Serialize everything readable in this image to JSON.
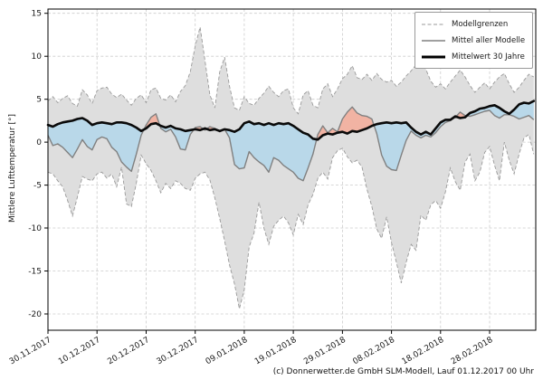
{
  "footer": {
    "copyright": "(c) Donnerwetter.de GmbH SLM-Modell, Lauf 01.12.2017 00 Uhr"
  },
  "chart_data": {
    "type": "line",
    "title": "",
    "xlabel": "",
    "ylabel": "Mittlere Lufttemperatur [°]",
    "ylim": [
      -21.9,
      15.5
    ],
    "yticks": [
      15,
      10,
      5,
      0,
      -5,
      -10,
      -15,
      -20
    ],
    "x_unit": "days_since_2017-11-30",
    "x_range": [
      0,
      99.4
    ],
    "grid": {
      "visible": true,
      "style": "dashed"
    },
    "xticks": [
      {
        "day": 0,
        "label": "30.11.2017"
      },
      {
        "day": 10,
        "label": "10.12.2017"
      },
      {
        "day": 20,
        "label": "20.12.2017"
      },
      {
        "day": 30,
        "label": "30.12.2017"
      },
      {
        "day": 40,
        "label": "09.01.2018"
      },
      {
        "day": 50,
        "label": "19.01.2018"
      },
      {
        "day": 60,
        "label": "29.01.2018"
      },
      {
        "day": 70,
        "label": "08.02.2018"
      },
      {
        "day": 80,
        "label": "18.02.2018"
      },
      {
        "day": 90,
        "label": "28.02.2018"
      }
    ],
    "legend": {
      "position": "top-right",
      "entries": [
        {
          "label": "Modellgrenzen",
          "style": "dashed",
          "color": "#999999",
          "width": 1
        },
        {
          "label": "Mittel aller Modelle",
          "style": "solid",
          "color": "#808080",
          "width": 1.6
        },
        {
          "label": "Mittelwert 30 Jahre",
          "style": "solid-bold",
          "color": "#000000",
          "width": 3
        }
      ]
    },
    "colors": {
      "band_fill": "#dedede",
      "bound_line": "#9a9a9a",
      "model_mean_line": "#808080",
      "mean30_line": "#0a0a0a",
      "below_fill": "#b9d8e9",
      "above_fill": "#f1b3a3",
      "grid_line": "#cccccc",
      "axis_line": "#000000",
      "tick_text": "#1a1a1a"
    },
    "series": [
      {
        "name": "Modellgrenzen (obere Grenze)",
        "role": "upper_bound",
        "values": [
          4.8,
          5.3,
          4.6,
          5.1,
          5.4,
          4.5,
          4.2,
          6.1,
          5.5,
          4.5,
          6.0,
          6.3,
          6.4,
          5.6,
          5.2,
          5.6,
          4.9,
          4.3,
          5.1,
          5.5,
          4.6,
          6.1,
          6.3,
          5.1,
          4.9,
          5.5,
          4.7,
          5.9,
          6.6,
          8.2,
          11.2,
          13.4,
          9.5,
          5.5,
          4.0,
          8.2,
          9.9,
          6.5,
          4.0,
          3.7,
          5.3,
          4.5,
          4.3,
          5.1,
          5.7,
          6.5,
          5.8,
          5.3,
          6.0,
          6.2,
          4.0,
          3.3,
          5.5,
          6.0,
          4.3,
          4.0,
          6.2,
          6.8,
          5.3,
          6.2,
          7.4,
          7.9,
          8.9,
          7.5,
          7.3,
          7.9,
          7.2,
          8.0,
          7.3,
          7.0,
          7.2,
          6.5,
          7.0,
          7.7,
          8.3,
          9.0,
          9.6,
          8.5,
          7.1,
          6.4,
          6.8,
          6.2,
          7.0,
          7.7,
          8.4,
          7.6,
          6.6,
          5.8,
          6.4,
          6.9,
          6.2,
          7.0,
          7.6,
          8.0,
          6.8,
          5.8,
          6.4,
          7.2,
          7.9,
          7.6
        ]
      },
      {
        "name": "Modellgrenzen (untere Grenze)",
        "role": "lower_bound",
        "values": [
          -3.5,
          -3.7,
          -4.5,
          -5.2,
          -6.8,
          -8.6,
          -6.4,
          -4.0,
          -4.3,
          -4.5,
          -3.7,
          -3.5,
          -4.2,
          -3.7,
          -5.2,
          -2.9,
          -7.2,
          -7.5,
          -4.8,
          -1.5,
          -2.5,
          -3.3,
          -4.5,
          -5.9,
          -4.8,
          -5.4,
          -4.5,
          -4.8,
          -5.4,
          -5.6,
          -4.2,
          -3.7,
          -3.5,
          -4.4,
          -6.5,
          -8.9,
          -11.5,
          -14.3,
          -16.5,
          -19.4,
          -17.2,
          -12.2,
          -10.6,
          -7.0,
          -10.0,
          -11.9,
          -9.8,
          -9.1,
          -8.6,
          -9.4,
          -10.8,
          -8.4,
          -9.6,
          -7.3,
          -6.1,
          -4.2,
          -3.5,
          -4.3,
          -1.8,
          -1.0,
          -0.7,
          -1.7,
          -2.4,
          -2.1,
          -2.9,
          -5.5,
          -7.5,
          -10.1,
          -11.2,
          -8.7,
          -11.7,
          -14.0,
          -16.4,
          -14.0,
          -11.9,
          -12.6,
          -8.5,
          -9.1,
          -7.3,
          -6.8,
          -7.7,
          -5.8,
          -3.0,
          -4.6,
          -5.6,
          -2.3,
          -1.4,
          -4.5,
          -3.5,
          -1.2,
          -0.5,
          -2.7,
          -4.5,
          0.0,
          -2.1,
          -3.7,
          -1.4,
          0.5,
          0.9,
          -1.4
        ]
      },
      {
        "name": "Mittel aller Modelle",
        "role": "model_mean",
        "values": [
          0.8,
          -0.4,
          -0.2,
          -0.6,
          -1.2,
          -1.8,
          -0.8,
          0.3,
          -0.5,
          -0.9,
          0.3,
          0.6,
          0.4,
          -0.6,
          -1.1,
          -2.3,
          -2.9,
          -3.4,
          -1.4,
          0.8,
          2.0,
          2.9,
          3.3,
          1.6,
          1.2,
          1.5,
          0.6,
          -0.8,
          -0.9,
          0.9,
          1.7,
          1.8,
          1.4,
          1.8,
          1.6,
          1.2,
          1.5,
          0.5,
          -2.6,
          -3.1,
          -3.0,
          -1.1,
          -1.8,
          -2.3,
          -2.7,
          -3.5,
          -1.8,
          -2.1,
          -2.7,
          -3.1,
          -3.5,
          -4.2,
          -4.5,
          -3.0,
          -1.4,
          0.9,
          1.9,
          1.1,
          1.6,
          1.2,
          2.7,
          3.5,
          4.1,
          3.4,
          3.1,
          3.0,
          2.7,
          1.0,
          -1.5,
          -2.8,
          -3.2,
          -3.3,
          -1.5,
          0.2,
          1.3,
          0.8,
          0.5,
          0.8,
          0.6,
          1.1,
          1.8,
          2.3,
          2.5,
          2.9,
          3.5,
          3.1,
          3.0,
          3.2,
          3.4,
          3.6,
          3.7,
          3.1,
          2.8,
          3.2,
          3.2,
          3.0,
          2.7,
          2.9,
          3.1,
          2.6
        ]
      },
      {
        "name": "Mittelwert 30 Jahre",
        "role": "mean_30yr",
        "values": [
          2.0,
          1.8,
          2.1,
          2.3,
          2.4,
          2.5,
          2.7,
          2.8,
          2.5,
          2.0,
          2.2,
          2.3,
          2.2,
          2.1,
          2.3,
          2.3,
          2.2,
          2.0,
          1.7,
          1.3,
          1.6,
          2.1,
          2.2,
          1.9,
          1.7,
          1.9,
          1.6,
          1.5,
          1.3,
          1.4,
          1.5,
          1.4,
          1.6,
          1.4,
          1.5,
          1.3,
          1.5,
          1.4,
          1.2,
          1.5,
          2.2,
          2.4,
          2.1,
          2.2,
          2.0,
          2.2,
          2.0,
          2.2,
          2.1,
          2.2,
          1.9,
          1.5,
          1.1,
          0.9,
          0.4,
          0.3,
          0.8,
          1.0,
          0.9,
          1.1,
          1.2,
          1.0,
          1.3,
          1.2,
          1.4,
          1.6,
          1.9,
          2.1,
          2.2,
          2.3,
          2.2,
          2.3,
          2.2,
          2.3,
          1.7,
          1.2,
          0.9,
          1.2,
          0.9,
          1.6,
          2.3,
          2.6,
          2.6,
          3.0,
          2.8,
          2.9,
          3.4,
          3.6,
          3.9,
          4.0,
          4.2,
          4.3,
          4.0,
          3.6,
          3.3,
          3.8,
          4.4,
          4.6,
          4.5,
          4.8
        ]
      }
    ]
  }
}
